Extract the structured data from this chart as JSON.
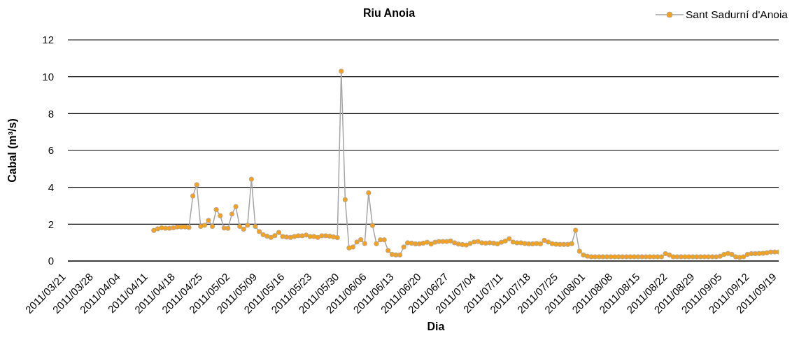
{
  "chart_data": {
    "type": "line",
    "title": "Riu Anoia",
    "xlabel": "Dia",
    "ylabel": "Cabal (m³/s)",
    "x": [
      "2011-04-12",
      "2011-04-13",
      "2011-04-14",
      "2011-04-15",
      "2011-04-16",
      "2011-04-17",
      "2011-04-18",
      "2011-04-19",
      "2011-04-20",
      "2011-04-21",
      "2011-04-22",
      "2011-04-23",
      "2011-04-24",
      "2011-04-25",
      "2011-04-26",
      "2011-04-27",
      "2011-04-28",
      "2011-04-29",
      "2011-04-30",
      "2011-05-01",
      "2011-05-02",
      "2011-05-03",
      "2011-05-04",
      "2011-05-05",
      "2011-05-06",
      "2011-05-07",
      "2011-05-08",
      "2011-05-09",
      "2011-05-10",
      "2011-05-11",
      "2011-05-12",
      "2011-05-13",
      "2011-05-14",
      "2011-05-15",
      "2011-05-16",
      "2011-05-17",
      "2011-05-18",
      "2011-05-19",
      "2011-05-20",
      "2011-05-21",
      "2011-05-22",
      "2011-05-23",
      "2011-05-24",
      "2011-05-25",
      "2011-05-26",
      "2011-05-27",
      "2011-05-28",
      "2011-05-29",
      "2011-05-30",
      "2011-05-31",
      "2011-06-01",
      "2011-06-02",
      "2011-06-03",
      "2011-06-04",
      "2011-06-05",
      "2011-06-06",
      "2011-06-07",
      "2011-06-08",
      "2011-06-09",
      "2011-06-10",
      "2011-06-11",
      "2011-06-12",
      "2011-06-13",
      "2011-06-14",
      "2011-06-15",
      "2011-06-16",
      "2011-06-17",
      "2011-06-18",
      "2011-06-19",
      "2011-06-20",
      "2011-06-21",
      "2011-06-22",
      "2011-06-23",
      "2011-06-24",
      "2011-06-25",
      "2011-06-26",
      "2011-06-27",
      "2011-06-28",
      "2011-06-29",
      "2011-06-30",
      "2011-07-01",
      "2011-07-02",
      "2011-07-03",
      "2011-07-04",
      "2011-07-05",
      "2011-07-06",
      "2011-07-07",
      "2011-07-08",
      "2011-07-09",
      "2011-07-10",
      "2011-07-11",
      "2011-07-12",
      "2011-07-13",
      "2011-07-14",
      "2011-07-15",
      "2011-07-16",
      "2011-07-17",
      "2011-07-18",
      "2011-07-19",
      "2011-07-20",
      "2011-07-21",
      "2011-07-22",
      "2011-07-23",
      "2011-07-24",
      "2011-07-25",
      "2011-07-26",
      "2011-07-27",
      "2011-07-28",
      "2011-07-29",
      "2011-07-30",
      "2011-07-31",
      "2011-08-01",
      "2011-08-02",
      "2011-08-03",
      "2011-08-04",
      "2011-08-05",
      "2011-08-06",
      "2011-08-07",
      "2011-08-08",
      "2011-08-09",
      "2011-08-10",
      "2011-08-11",
      "2011-08-12",
      "2011-08-13",
      "2011-08-14",
      "2011-08-15",
      "2011-08-16",
      "2011-08-17",
      "2011-08-18",
      "2011-08-19",
      "2011-08-20",
      "2011-08-21",
      "2011-08-22",
      "2011-08-23",
      "2011-08-24",
      "2011-08-25",
      "2011-08-26",
      "2011-08-27",
      "2011-08-28",
      "2011-08-29",
      "2011-08-30",
      "2011-08-31",
      "2011-09-01",
      "2011-09-02",
      "2011-09-03",
      "2011-09-04",
      "2011-09-05",
      "2011-09-06",
      "2011-09-07",
      "2011-09-08",
      "2011-09-09",
      "2011-09-10",
      "2011-09-11",
      "2011-09-12",
      "2011-09-13",
      "2011-09-14",
      "2011-09-15",
      "2011-09-16",
      "2011-09-17",
      "2011-09-18",
      "2011-09-19"
    ],
    "series": [
      {
        "name": "Sant Sadurní d'Anoia",
        "color": "#f7a11a",
        "values": [
          1.66,
          1.75,
          1.8,
          1.78,
          1.78,
          1.8,
          1.85,
          1.85,
          1.85,
          1.82,
          3.53,
          4.14,
          1.88,
          1.94,
          2.2,
          1.88,
          2.79,
          2.46,
          1.79,
          1.78,
          2.55,
          2.95,
          1.88,
          1.73,
          1.94,
          4.44,
          1.88,
          1.6,
          1.43,
          1.35,
          1.28,
          1.38,
          1.55,
          1.33,
          1.3,
          1.28,
          1.33,
          1.37,
          1.37,
          1.41,
          1.33,
          1.33,
          1.28,
          1.37,
          1.37,
          1.35,
          1.31,
          1.27,
          10.3,
          3.33,
          0.71,
          0.76,
          1.03,
          1.16,
          0.95,
          3.7,
          1.93,
          0.94,
          1.15,
          1.15,
          0.57,
          0.36,
          0.33,
          0.33,
          0.76,
          0.99,
          0.97,
          0.93,
          0.93,
          0.97,
          1.02,
          0.92,
          1.02,
          1.06,
          1.06,
          1.06,
          1.09,
          0.99,
          0.92,
          0.89,
          0.87,
          0.95,
          1.03,
          1.06,
          0.99,
          0.97,
          0.99,
          0.97,
          0.93,
          1.02,
          1.09,
          1.21,
          1.03,
          0.99,
          0.99,
          0.95,
          0.93,
          0.93,
          0.95,
          0.93,
          1.12,
          1.03,
          0.94,
          0.91,
          0.9,
          0.9,
          0.9,
          0.94,
          1.67,
          0.53,
          0.33,
          0.26,
          0.23,
          0.23,
          0.23,
          0.23,
          0.23,
          0.23,
          0.23,
          0.23,
          0.23,
          0.23,
          0.23,
          0.23,
          0.23,
          0.23,
          0.23,
          0.23,
          0.23,
          0.23,
          0.23,
          0.4,
          0.33,
          0.23,
          0.23,
          0.23,
          0.23,
          0.23,
          0.23,
          0.23,
          0.23,
          0.23,
          0.23,
          0.23,
          0.23,
          0.26,
          0.36,
          0.41,
          0.36,
          0.23,
          0.2,
          0.23,
          0.36,
          0.4,
          0.4,
          0.41,
          0.42,
          0.45,
          0.49,
          0.49,
          0.49
        ]
      }
    ],
    "xlim": [
      "2011-03-21",
      "2011-09-19"
    ],
    "xticks": [
      {
        "value": "2011-03-21",
        "label": "2011/03/21"
      },
      {
        "value": "2011-03-28",
        "label": "2011/03/28"
      },
      {
        "value": "2011-04-04",
        "label": "2011/04/04"
      },
      {
        "value": "2011-04-11",
        "label": "2011/04/11"
      },
      {
        "value": "2011-04-18",
        "label": "2011/04/18"
      },
      {
        "value": "2011-04-25",
        "label": "2011/04/25"
      },
      {
        "value": "2011-05-02",
        "label": "2011/05/02"
      },
      {
        "value": "2011-05-09",
        "label": "2011/05/09"
      },
      {
        "value": "2011-05-16",
        "label": "2011/05/16"
      },
      {
        "value": "2011-05-23",
        "label": "2011/05/23"
      },
      {
        "value": "2011-05-30",
        "label": "2011/05/30"
      },
      {
        "value": "2011-06-06",
        "label": "2011/06/06"
      },
      {
        "value": "2011-06-13",
        "label": "2011/06/13"
      },
      {
        "value": "2011-06-20",
        "label": "2011/06/20"
      },
      {
        "value": "2011-06-27",
        "label": "2011/06/27"
      },
      {
        "value": "2011-07-04",
        "label": "2011/07/04"
      },
      {
        "value": "2011-07-11",
        "label": "2011/07/11"
      },
      {
        "value": "2011-07-18",
        "label": "2011/07/18"
      },
      {
        "value": "2011-07-25",
        "label": "2011/07/25"
      },
      {
        "value": "2011-08-01",
        "label": "2011/08/01"
      },
      {
        "value": "2011-08-08",
        "label": "2011/08/08"
      },
      {
        "value": "2011-08-15",
        "label": "2011/08/15"
      },
      {
        "value": "2011-08-22",
        "label": "2011/08/22"
      },
      {
        "value": "2011-08-29",
        "label": "2011/08/29"
      },
      {
        "value": "2011-09-05",
        "label": "2011/09/05"
      },
      {
        "value": "2011-09-12",
        "label": "2011/09/12"
      },
      {
        "value": "2011-09-19",
        "label": "2011/09/19"
      }
    ],
    "ylim": [
      0,
      12
    ],
    "yticks": [
      0,
      2,
      4,
      6,
      8,
      10,
      12
    ],
    "grid": "y",
    "legend": "top right",
    "marker": "circle",
    "line_style": "solid"
  }
}
